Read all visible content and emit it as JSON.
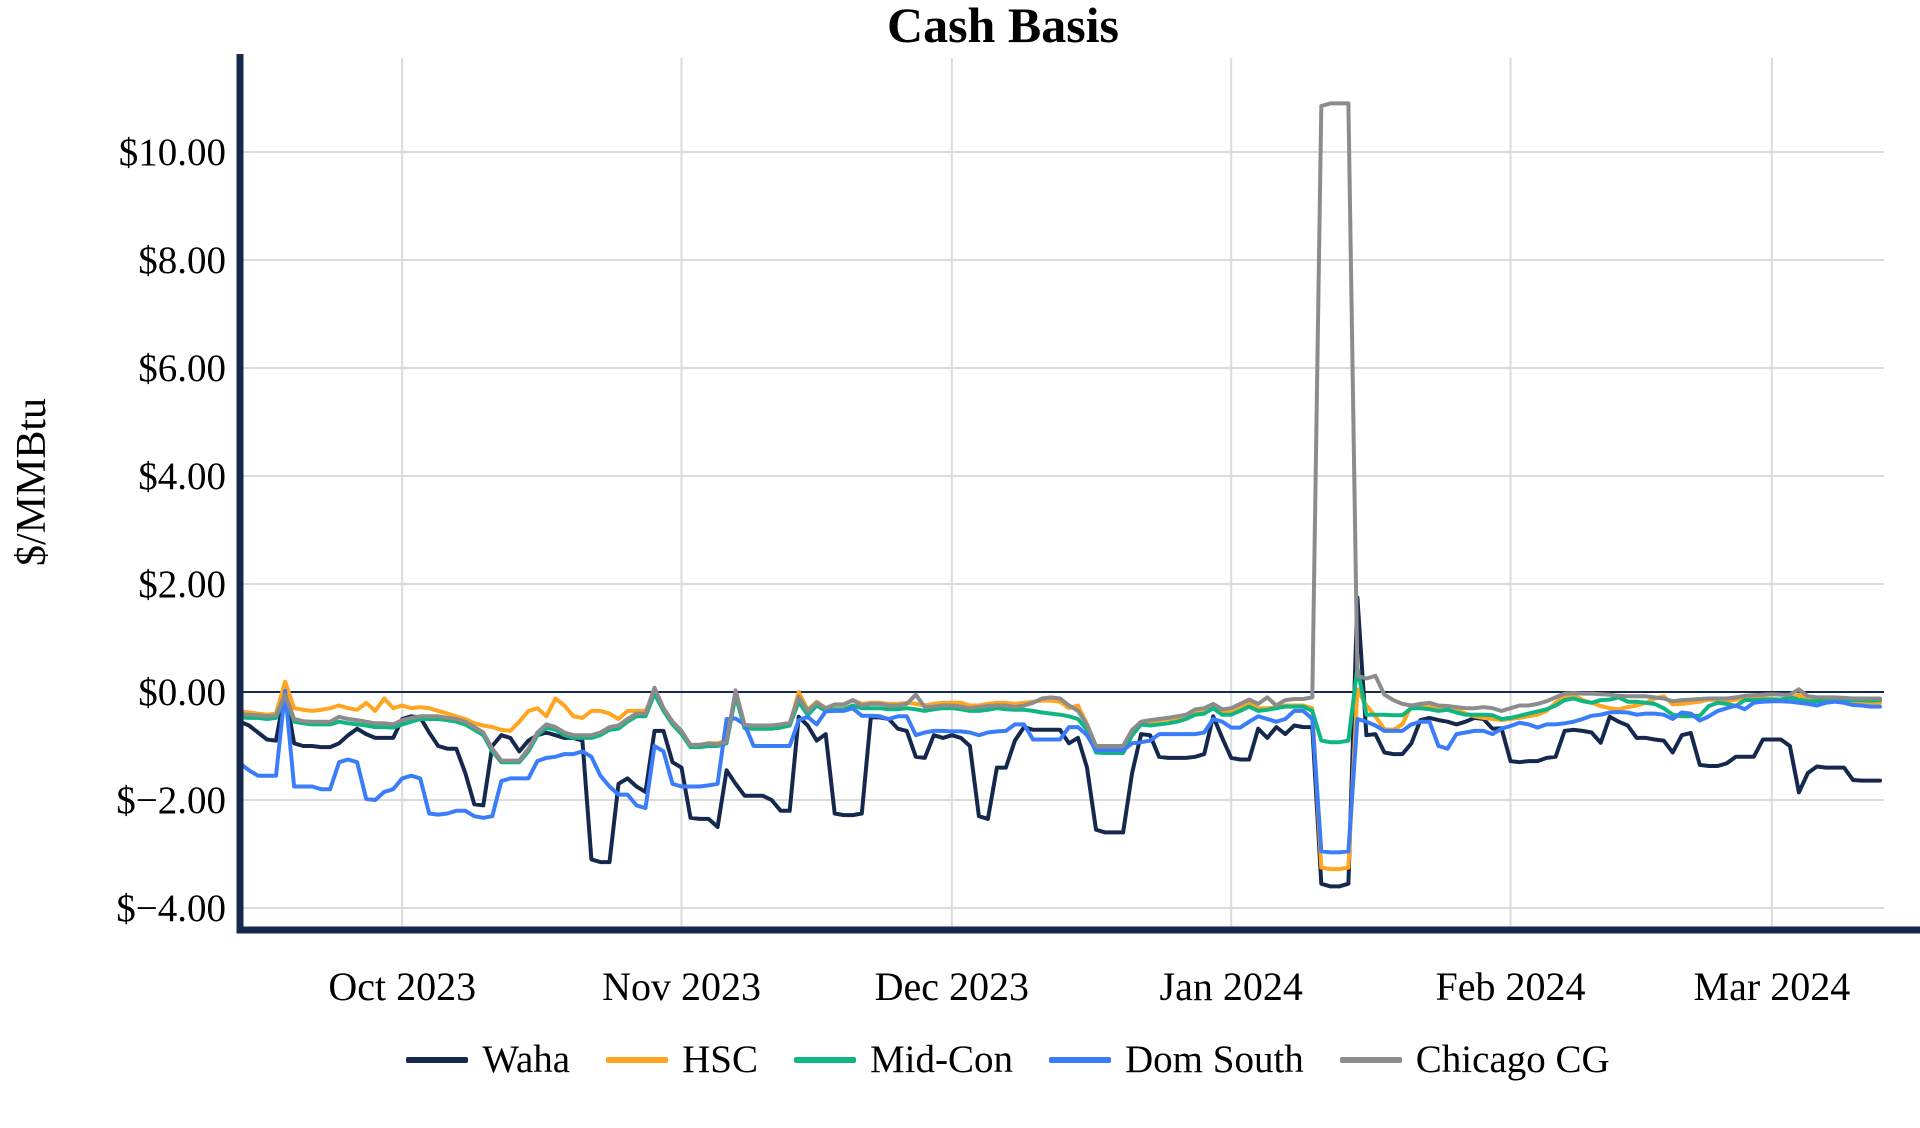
{
  "chart_data": {
    "type": "line",
    "title": "Cash Basis",
    "ylabel": "$/MMBtu",
    "xlabel": "",
    "grid": true,
    "legend_position": "bottom",
    "background_color": "#FFFFFF",
    "axis_color": "#15294E",
    "zero_line_color": "#15294E",
    "grid_color": "#DBDBDB",
    "ylim": [
      -4.4,
      11.75
    ],
    "x_total_days": 182,
    "x_ticks": [
      {
        "label": "Oct 2023",
        "day": 18
      },
      {
        "label": "Nov 2023",
        "day": 49
      },
      {
        "label": "Dec 2023",
        "day": 79
      },
      {
        "label": "Jan 2024",
        "day": 110
      },
      {
        "label": "Feb 2024",
        "day": 141
      },
      {
        "label": "Mar 2024",
        "day": 170
      }
    ],
    "y_ticks": [
      {
        "label": "$10.00",
        "value": 10
      },
      {
        "label": "$8.00",
        "value": 8
      },
      {
        "label": "$6.00",
        "value": 6
      },
      {
        "label": "$4.00",
        "value": 4
      },
      {
        "label": "$2.00",
        "value": 2
      },
      {
        "label": "$0.00",
        "value": 0
      },
      {
        "label": "$−2.00",
        "value": -2
      },
      {
        "label": "$−4.00",
        "value": -4
      }
    ],
    "series": [
      {
        "name": "Waha",
        "color": "#15294E",
        "values": [
          -0.55,
          -0.62,
          -0.75,
          -0.88,
          -0.9,
          0.02,
          -0.95,
          -1.0,
          -1.0,
          -1.02,
          -1.02,
          -0.95,
          -0.8,
          -0.68,
          -0.78,
          -0.85,
          -0.85,
          -0.85,
          -0.5,
          -0.45,
          -0.47,
          -0.75,
          -1.0,
          -1.05,
          -1.05,
          -1.5,
          -2.08,
          -2.1,
          -1.0,
          -0.8,
          -0.85,
          -1.1,
          -0.9,
          -0.8,
          -0.75,
          -0.8,
          -0.85,
          -0.85,
          -0.9,
          -3.1,
          -3.15,
          -3.15,
          -1.7,
          -1.6,
          -1.75,
          -1.85,
          -0.72,
          -0.72,
          -1.3,
          -1.4,
          -2.33,
          -2.35,
          -2.35,
          -2.5,
          -1.45,
          -1.7,
          -1.92,
          -1.92,
          -1.92,
          -2.0,
          -2.2,
          -2.2,
          -0.46,
          -0.62,
          -0.9,
          -0.78,
          -2.25,
          -2.28,
          -2.28,
          -2.25,
          -0.47,
          -0.47,
          -0.5,
          -0.68,
          -0.72,
          -1.2,
          -1.22,
          -0.8,
          -0.85,
          -0.8,
          -0.85,
          -1.0,
          -2.3,
          -2.35,
          -1.4,
          -1.4,
          -0.9,
          -0.65,
          -0.7,
          -0.7,
          -0.7,
          -0.7,
          -0.95,
          -0.85,
          -1.4,
          -2.55,
          -2.6,
          -2.6,
          -2.6,
          -1.5,
          -0.78,
          -0.8,
          -1.2,
          -1.22,
          -1.22,
          -1.22,
          -1.2,
          -1.15,
          -0.45,
          -0.85,
          -1.22,
          -1.25,
          -1.25,
          -0.68,
          -0.85,
          -0.65,
          -0.78,
          -0.62,
          -0.65,
          -0.65,
          -3.55,
          -3.6,
          -3.6,
          -3.55,
          1.75,
          -0.8,
          -0.78,
          -1.12,
          -1.15,
          -1.15,
          -0.95,
          -0.52,
          -0.48,
          -0.52,
          -0.55,
          -0.6,
          -0.55,
          -0.48,
          -0.5,
          -0.68,
          -0.67,
          -1.28,
          -1.3,
          -1.28,
          -1.28,
          -1.22,
          -1.2,
          -0.72,
          -0.7,
          -0.72,
          -0.75,
          -0.94,
          -0.46,
          -0.55,
          -0.62,
          -0.85,
          -0.85,
          -0.88,
          -0.9,
          -1.12,
          -0.8,
          -0.76,
          -1.35,
          -1.37,
          -1.37,
          -1.32,
          -1.2,
          -1.2,
          -1.2,
          -0.88,
          -0.88,
          -0.88,
          -1.0,
          -1.86,
          -1.5,
          -1.38,
          -1.4,
          -1.4,
          -1.4,
          -1.63,
          -1.64,
          -1.64,
          -1.64
        ]
      },
      {
        "name": "HSC",
        "color": "#FFA51F",
        "values": [
          -0.36,
          -0.38,
          -0.4,
          -0.42,
          -0.4,
          0.19,
          -0.3,
          -0.33,
          -0.35,
          -0.33,
          -0.3,
          -0.25,
          -0.3,
          -0.33,
          -0.2,
          -0.35,
          -0.12,
          -0.3,
          -0.25,
          -0.3,
          -0.28,
          -0.3,
          -0.35,
          -0.4,
          -0.45,
          -0.5,
          -0.58,
          -0.62,
          -0.65,
          -0.7,
          -0.72,
          -0.55,
          -0.35,
          -0.3,
          -0.45,
          -0.12,
          -0.25,
          -0.45,
          -0.48,
          -0.35,
          -0.35,
          -0.4,
          -0.5,
          -0.35,
          -0.35,
          -0.35,
          -0.05,
          -0.3,
          -0.55,
          -0.75,
          -0.98,
          -0.98,
          -0.95,
          -0.95,
          -0.9,
          -0.02,
          -0.63,
          -0.65,
          -0.65,
          -0.65,
          -0.62,
          -0.6,
          0.0,
          -0.33,
          -0.18,
          -0.3,
          -0.24,
          -0.24,
          -0.15,
          -0.22,
          -0.2,
          -0.2,
          -0.22,
          -0.22,
          -0.2,
          -0.22,
          -0.25,
          -0.22,
          -0.2,
          -0.2,
          -0.2,
          -0.25,
          -0.25,
          -0.22,
          -0.2,
          -0.2,
          -0.22,
          -0.2,
          -0.18,
          -0.16,
          -0.16,
          -0.18,
          -0.3,
          -0.25,
          -0.6,
          -1.02,
          -1.03,
          -1.03,
          -1.03,
          -0.75,
          -0.6,
          -0.55,
          -0.52,
          -0.5,
          -0.5,
          -0.48,
          -0.38,
          -0.35,
          -0.25,
          -0.38,
          -0.38,
          -0.3,
          -0.2,
          -0.3,
          -0.3,
          -0.28,
          -0.25,
          -0.25,
          -0.25,
          -0.3,
          -3.25,
          -3.28,
          -3.28,
          -3.25,
          0.05,
          -0.25,
          -0.45,
          -0.69,
          -0.7,
          -0.6,
          -0.25,
          -0.25,
          -0.28,
          -0.3,
          -0.27,
          -0.32,
          -0.4,
          -0.45,
          -0.48,
          -0.5,
          -0.52,
          -0.5,
          -0.48,
          -0.45,
          -0.42,
          -0.35,
          -0.2,
          -0.08,
          -0.05,
          -0.15,
          -0.2,
          -0.26,
          -0.3,
          -0.32,
          -0.28,
          -0.25,
          -0.2,
          -0.12,
          -0.08,
          -0.23,
          -0.22,
          -0.2,
          -0.18,
          -0.14,
          -0.15,
          -0.17,
          -0.14,
          -0.12,
          -0.1,
          -0.12,
          -0.13,
          -0.14,
          -0.13,
          -0.05,
          -0.15,
          -0.17,
          -0.16,
          -0.16,
          -0.17,
          -0.18,
          -0.18,
          -0.2,
          -0.2
        ]
      },
      {
        "name": "Mid-Con",
        "color": "#10B584",
        "values": [
          -0.47,
          -0.48,
          -0.48,
          -0.5,
          -0.48,
          -0.07,
          -0.55,
          -0.58,
          -0.6,
          -0.6,
          -0.6,
          -0.55,
          -0.58,
          -0.6,
          -0.62,
          -0.65,
          -0.65,
          -0.66,
          -0.6,
          -0.55,
          -0.5,
          -0.5,
          -0.5,
          -0.52,
          -0.55,
          -0.6,
          -0.7,
          -0.8,
          -1.1,
          -1.3,
          -1.3,
          -1.3,
          -1.1,
          -0.8,
          -0.66,
          -0.7,
          -0.8,
          -0.85,
          -0.85,
          -0.85,
          -0.8,
          -0.7,
          -0.68,
          -0.55,
          -0.45,
          -0.45,
          -0.03,
          -0.35,
          -0.6,
          -0.78,
          -1.02,
          -1.02,
          -1.0,
          -1.0,
          -0.95,
          -0.07,
          -0.67,
          -0.68,
          -0.68,
          -0.68,
          -0.66,
          -0.62,
          -0.18,
          -0.43,
          -0.25,
          -0.35,
          -0.32,
          -0.32,
          -0.25,
          -0.3,
          -0.3,
          -0.3,
          -0.32,
          -0.32,
          -0.3,
          -0.32,
          -0.35,
          -0.32,
          -0.3,
          -0.3,
          -0.32,
          -0.35,
          -0.35,
          -0.33,
          -0.3,
          -0.32,
          -0.33,
          -0.33,
          -0.35,
          -0.38,
          -0.4,
          -0.42,
          -0.45,
          -0.5,
          -0.7,
          -1.12,
          -1.13,
          -1.13,
          -1.13,
          -0.8,
          -0.6,
          -0.62,
          -0.6,
          -0.58,
          -0.55,
          -0.5,
          -0.42,
          -0.4,
          -0.3,
          -0.42,
          -0.42,
          -0.35,
          -0.27,
          -0.35,
          -0.33,
          -0.3,
          -0.27,
          -0.27,
          -0.27,
          -0.35,
          -0.9,
          -0.93,
          -0.93,
          -0.9,
          0.45,
          -0.42,
          -0.42,
          -0.42,
          -0.43,
          -0.43,
          -0.3,
          -0.3,
          -0.32,
          -0.35,
          -0.33,
          -0.38,
          -0.42,
          -0.42,
          -0.42,
          -0.43,
          -0.5,
          -0.48,
          -0.44,
          -0.4,
          -0.36,
          -0.32,
          -0.25,
          -0.15,
          -0.12,
          -0.17,
          -0.2,
          -0.15,
          -0.14,
          -0.1,
          -0.18,
          -0.18,
          -0.2,
          -0.22,
          -0.3,
          -0.42,
          -0.45,
          -0.45,
          -0.44,
          -0.26,
          -0.2,
          -0.22,
          -0.26,
          -0.15,
          -0.15,
          -0.14,
          -0.14,
          -0.14,
          -0.1,
          -0.14,
          -0.17,
          -0.17,
          -0.15,
          -0.15,
          -0.15,
          -0.15,
          -0.15,
          -0.16,
          -0.15
        ]
      },
      {
        "name": "Dom South",
        "color": "#3B7DF8",
        "values": [
          -1.32,
          -1.45,
          -1.55,
          -1.55,
          -1.55,
          0.02,
          -1.75,
          -1.75,
          -1.75,
          -1.8,
          -1.8,
          -1.3,
          -1.25,
          -1.3,
          -1.98,
          -2.0,
          -1.85,
          -1.8,
          -1.6,
          -1.55,
          -1.6,
          -2.25,
          -2.27,
          -2.25,
          -2.2,
          -2.2,
          -2.3,
          -2.33,
          -2.3,
          -1.65,
          -1.6,
          -1.6,
          -1.6,
          -1.28,
          -1.22,
          -1.2,
          -1.15,
          -1.15,
          -1.1,
          -1.2,
          -1.55,
          -1.75,
          -1.9,
          -1.9,
          -2.1,
          -2.15,
          -1.0,
          -1.1,
          -1.7,
          -1.75,
          -1.75,
          -1.75,
          -1.73,
          -1.7,
          -0.5,
          -0.49,
          -0.6,
          -1.0,
          -1.0,
          -1.0,
          -1.0,
          -1.0,
          -0.52,
          -0.46,
          -0.6,
          -0.36,
          -0.35,
          -0.35,
          -0.3,
          -0.44,
          -0.44,
          -0.45,
          -0.5,
          -0.45,
          -0.45,
          -0.8,
          -0.75,
          -0.72,
          -0.72,
          -0.73,
          -0.73,
          -0.75,
          -0.8,
          -0.75,
          -0.73,
          -0.72,
          -0.6,
          -0.6,
          -0.88,
          -0.88,
          -0.88,
          -0.88,
          -0.65,
          -0.65,
          -0.8,
          -1.08,
          -1.08,
          -1.08,
          -1.08,
          -0.95,
          -0.93,
          -0.9,
          -0.78,
          -0.78,
          -0.78,
          -0.78,
          -0.78,
          -0.75,
          -0.5,
          -0.55,
          -0.66,
          -0.66,
          -0.55,
          -0.45,
          -0.5,
          -0.55,
          -0.5,
          -0.35,
          -0.35,
          -0.5,
          -2.95,
          -2.97,
          -2.97,
          -2.95,
          -0.5,
          -0.55,
          -0.62,
          -0.72,
          -0.72,
          -0.72,
          -0.6,
          -0.55,
          -0.55,
          -1.0,
          -1.05,
          -0.78,
          -0.75,
          -0.72,
          -0.72,
          -0.78,
          -0.68,
          -0.63,
          -0.57,
          -0.6,
          -0.66,
          -0.6,
          -0.6,
          -0.58,
          -0.55,
          -0.5,
          -0.44,
          -0.42,
          -0.38,
          -0.37,
          -0.38,
          -0.42,
          -0.4,
          -0.4,
          -0.42,
          -0.5,
          -0.38,
          -0.4,
          -0.53,
          -0.45,
          -0.35,
          -0.3,
          -0.25,
          -0.32,
          -0.2,
          -0.18,
          -0.17,
          -0.17,
          -0.18,
          -0.2,
          -0.22,
          -0.25,
          -0.2,
          -0.18,
          -0.2,
          -0.24,
          -0.25,
          -0.27,
          -0.27
        ]
      },
      {
        "name": "Chicago CG",
        "color": "#8C8C8C",
        "values": [
          -0.41,
          -0.42,
          -0.43,
          -0.45,
          -0.43,
          -0.05,
          -0.5,
          -0.54,
          -0.55,
          -0.55,
          -0.55,
          -0.46,
          -0.5,
          -0.52,
          -0.55,
          -0.58,
          -0.58,
          -0.6,
          -0.52,
          -0.48,
          -0.45,
          -0.45,
          -0.45,
          -0.48,
          -0.5,
          -0.55,
          -0.65,
          -0.75,
          -1.05,
          -1.27,
          -1.27,
          -1.27,
          -1.05,
          -0.75,
          -0.6,
          -0.65,
          -0.75,
          -0.8,
          -0.8,
          -0.8,
          -0.75,
          -0.65,
          -0.62,
          -0.5,
          -0.4,
          -0.4,
          0.08,
          -0.3,
          -0.55,
          -0.72,
          -0.98,
          -0.98,
          -0.95,
          -0.97,
          -0.92,
          0.03,
          -0.61,
          -0.62,
          -0.62,
          -0.62,
          -0.6,
          -0.57,
          -0.09,
          -0.35,
          -0.2,
          -0.3,
          -0.23,
          -0.23,
          -0.15,
          -0.25,
          -0.22,
          -0.22,
          -0.25,
          -0.25,
          -0.22,
          -0.05,
          -0.28,
          -0.27,
          -0.25,
          -0.25,
          -0.27,
          -0.3,
          -0.28,
          -0.26,
          -0.25,
          -0.25,
          -0.28,
          -0.25,
          -0.2,
          -0.12,
          -0.1,
          -0.12,
          -0.25,
          -0.35,
          -0.6,
          -1.0,
          -1.0,
          -1.0,
          -1.0,
          -0.7,
          -0.55,
          -0.52,
          -0.5,
          -0.48,
          -0.45,
          -0.42,
          -0.32,
          -0.3,
          -0.22,
          -0.32,
          -0.3,
          -0.22,
          -0.14,
          -0.22,
          -0.1,
          -0.25,
          -0.15,
          -0.13,
          -0.13,
          -0.1,
          10.85,
          10.9,
          10.9,
          10.9,
          0.3,
          0.25,
          0.3,
          -0.05,
          -0.15,
          -0.22,
          -0.25,
          -0.22,
          -0.2,
          -0.25,
          -0.26,
          -0.28,
          -0.3,
          -0.3,
          -0.28,
          -0.3,
          -0.35,
          -0.3,
          -0.25,
          -0.25,
          -0.22,
          -0.17,
          -0.1,
          -0.03,
          -0.02,
          -0.03,
          -0.03,
          -0.04,
          -0.05,
          -0.07,
          -0.08,
          -0.08,
          -0.08,
          -0.1,
          -0.12,
          -0.17,
          -0.15,
          -0.14,
          -0.13,
          -0.12,
          -0.12,
          -0.12,
          -0.1,
          -0.07,
          -0.06,
          -0.05,
          -0.04,
          -0.05,
          -0.05,
          0.05,
          -0.08,
          -0.1,
          -0.1,
          -0.1,
          -0.11,
          -0.12,
          -0.12,
          -0.12,
          -0.12
        ]
      }
    ]
  }
}
